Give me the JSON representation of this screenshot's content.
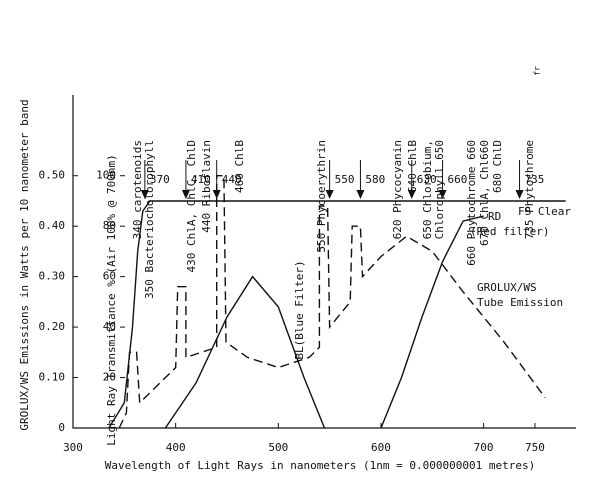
{
  "chart_data": {
    "type": "line",
    "y_label": "GROLUX/WS  Emissions in Watts per 10 nanometer band",
    "y2_label": "Light Ray Transmittance % (Air 100% @ 700nm)",
    "x_label": "Wavelength of Light Rays in nanometers (1nm = 0.000000001 metres)",
    "xlim": [
      300,
      790
    ],
    "xticks": [
      300,
      400,
      500,
      600,
      700,
      750
    ],
    "ylim": [
      0,
      0.66
    ],
    "yticks": [
      0,
      {
        "value": 0.1,
        "label": "0.10"
      },
      {
        "value": 0.2,
        "label": "0.20"
      },
      {
        "value": 0.3,
        "label": "0.30"
      },
      {
        "value": 0.4,
        "label": "0.40"
      },
      {
        "value": 0.5,
        "label": "0.50"
      }
    ],
    "y2lim": [
      0,
      132
    ],
    "y2ticks": [
      20,
      40,
      60,
      80,
      100
    ],
    "top_labels": [
      "340 carotenoids",
      "350 Bacteriocholorophyll",
      "430 ChlA, ChlC, ChlD",
      "440 Riboflavin",
      "460 ChlB",
      "550 Phycoerythrin",
      "620 Phycocyanin",
      "640 ChlB",
      "650 Chlorobium,",
      "Chlorophyll 650",
      "660 Phytochrome 660",
      "670 ChlA, Chl660",
      "680 ChlD",
      "735 Phytochrome",
      "fr"
    ],
    "markers": [
      370,
      410,
      440,
      550,
      580,
      630,
      660,
      735
    ],
    "series": [
      {
        "name": "FS Clear",
        "color": "#111",
        "dashed": false,
        "x": [
          335,
          350,
          358,
          363,
          368,
          375,
          385,
          780
        ],
        "values": [
          0,
          0.05,
          0.2,
          0.35,
          0.43,
          0.45,
          0.45,
          0.45
        ]
      },
      {
        "name": "GROLUX/WS",
        "label2": "Tube Emission",
        "color": "#111",
        "dashed": true,
        "x": [
          345,
          352,
          355,
          362,
          365,
          400,
          402,
          410,
          410,
          440,
          440,
          447,
          449,
          470,
          500,
          530,
          540,
          540,
          548,
          550,
          570,
          572,
          580,
          582,
          600,
          625,
          650,
          680,
          720,
          760
        ],
        "values": [
          0,
          0.03,
          0.15,
          0.15,
          0.05,
          0.12,
          0.28,
          0.28,
          0.14,
          0.16,
          0.5,
          0.5,
          0.17,
          0.14,
          0.12,
          0.14,
          0.16,
          0.44,
          0.44,
          0.2,
          0.25,
          0.4,
          0.4,
          0.3,
          0.34,
          0.38,
          0.35,
          0.27,
          0.17,
          0.06
        ]
      },
      {
        "name": "BL(Blue Filter)",
        "color": "#111",
        "dashed": false,
        "x": [
          390,
          420,
          450,
          475,
          500,
          525,
          545
        ],
        "values": [
          0,
          0.09,
          0.22,
          0.3,
          0.24,
          0.1,
          0
        ]
      },
      {
        "name": "RD",
        "label2": "(Red filter)",
        "color": "#111",
        "dashed": false,
        "x": [
          600,
          620,
          640,
          660,
          680,
          700
        ],
        "values": [
          0,
          0.1,
          0.22,
          0.33,
          0.41,
          0.42
        ]
      }
    ]
  }
}
